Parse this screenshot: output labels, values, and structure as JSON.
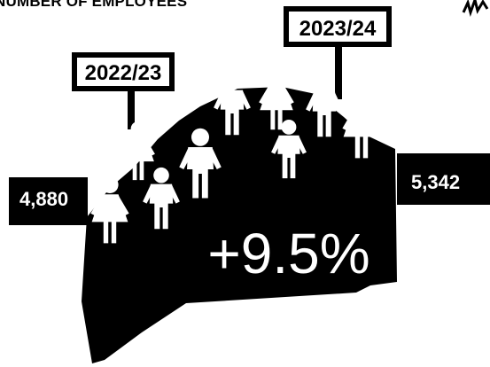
{
  "heading": "NUMBER OF EMPLOYEES",
  "period_labels": {
    "previous": "2022/23",
    "current": "2023/24"
  },
  "values": {
    "previous": "4,880",
    "current": "5,342"
  },
  "change": "+9.5%",
  "colors": {
    "ink": "#000000",
    "paper": "#ffffff"
  },
  "icons": [
    "person-icon",
    "signature-icon"
  ]
}
